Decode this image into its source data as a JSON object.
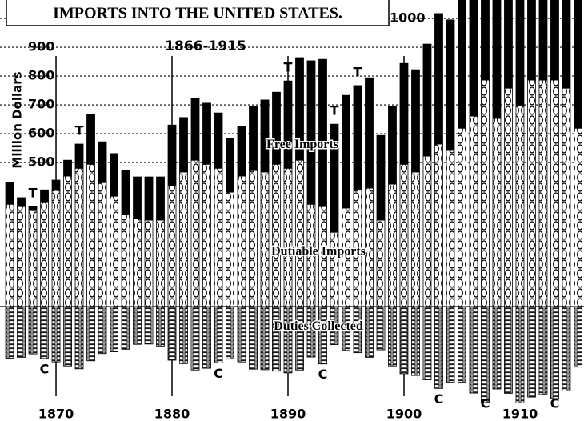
{
  "chart_data": {
    "type": "bar",
    "title": "IMPORTS INTO THE UNITED STATES.",
    "subtitle": "1866-1915",
    "y_label": "Million Dollars",
    "x": [
      1866,
      1867,
      1868,
      1869,
      1870,
      1871,
      1872,
      1873,
      1874,
      1875,
      1876,
      1877,
      1878,
      1879,
      1880,
      1881,
      1882,
      1883,
      1884,
      1885,
      1886,
      1887,
      1888,
      1889,
      1890,
      1891,
      1892,
      1893,
      1894,
      1895,
      1896,
      1897,
      1898,
      1899,
      1900,
      1901,
      1902,
      1903,
      1904,
      1905,
      1906,
      1907,
      1908,
      1909,
      1910,
      1911,
      1912,
      1913,
      1914,
      1915
    ],
    "xlim": [
      1865.17,
      1915.52
    ],
    "xticks": [
      1870,
      1880,
      1890,
      1900,
      1910
    ],
    "ylim": [
      -397,
      1064
    ],
    "yticks": [
      500,
      600,
      700,
      800,
      900,
      1000
    ],
    "grid": true,
    "series": [
      {
        "name": "Dutiable Imports",
        "color": "#000000",
        "pattern": "chain",
        "stack": "up",
        "values": [
          355,
          347,
          333,
          361,
          403,
          453,
          480,
          494,
          430,
          383,
          319,
          306,
          300,
          300,
          419,
          467,
          508,
          494,
          480,
          397,
          453,
          472,
          467,
          494,
          480,
          508,
          355,
          347,
          258,
          342,
          405,
          411,
          300,
          425,
          494,
          467,
          522,
          564,
          542,
          619,
          661,
          786,
          653,
          758,
          697,
          786,
          786,
          786,
          758,
          619
        ]
      },
      {
        "name": "Free Imports",
        "color": "#000000",
        "pattern": "solid",
        "stack": "up",
        "values": [
          75,
          31,
          14,
          44,
          36,
          55,
          84,
          173,
          142,
          148,
          153,
          144,
          150,
          150,
          211,
          189,
          214,
          212,
          192,
          186,
          172,
          222,
          250,
          250,
          303,
          356,
          498,
          511,
          375,
          391,
          362,
          383,
          294,
          269,
          350,
          355,
          389,
          453,
          453,
          499,
          566,
          648,
          541,
          554,
          860,
          741,
          867,
          1027,
          1136,
          1055
        ]
      },
      {
        "name": "Duties Collected",
        "color": "#000000",
        "pattern": "blocks",
        "stack": "down",
        "values": [
          -179,
          -176,
          -164,
          -180,
          -192,
          -206,
          -216,
          -188,
          -163,
          -157,
          -148,
          -131,
          -130,
          -137,
          -186,
          -198,
          -220,
          -214,
          -195,
          -181,
          -192,
          -217,
          -219,
          -224,
          -230,
          -220,
          -175,
          -199,
          -132,
          -152,
          -160,
          -176,
          -150,
          -206,
          -233,
          -239,
          -254,
          -284,
          -262,
          -262,
          -300,
          -333,
          -286,
          -301,
          -334,
          -314,
          -305,
          -319,
          -293,
          -210
        ]
      }
    ],
    "annotations": [
      {
        "text": "T",
        "x": 1868
      },
      {
        "text": "T",
        "x": 1872
      },
      {
        "text": "T",
        "x": 1890
      },
      {
        "text": "T",
        "x": 1894
      },
      {
        "text": "T",
        "x": 1896
      },
      {
        "text": "C",
        "x": 1869
      },
      {
        "text": "C",
        "x": 1884
      },
      {
        "text": "C",
        "x": 1893
      },
      {
        "text": "C",
        "x": 1903
      },
      {
        "text": "C",
        "x": 1907
      },
      {
        "text": "C",
        "x": 1913
      }
    ]
  }
}
